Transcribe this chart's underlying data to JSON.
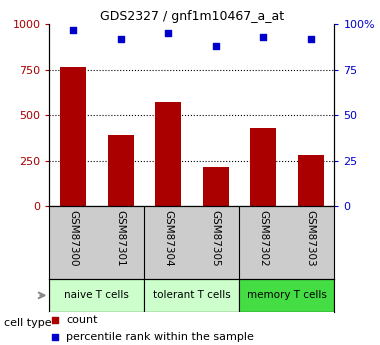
{
  "title": "GDS2327 / gnf1m10467_a_at",
  "samples": [
    "GSM87300",
    "GSM87301",
    "GSM87304",
    "GSM87305",
    "GSM87302",
    "GSM87303"
  ],
  "counts": [
    762,
    390,
    570,
    215,
    430,
    280
  ],
  "percentiles": [
    97,
    92,
    95,
    88,
    93,
    92
  ],
  "cell_types": [
    {
      "label": "naive T cells",
      "color": "#ccffcc"
    },
    {
      "label": "tolerant T cells",
      "color": "#ccffcc"
    },
    {
      "label": "memory T cells",
      "color": "#44dd44"
    }
  ],
  "ct_boundaries": [
    0,
    2,
    4,
    6
  ],
  "bar_color": "#aa0000",
  "dot_color": "#0000cc",
  "ylim_left": [
    0,
    1000
  ],
  "ylim_right": [
    0,
    100
  ],
  "yticks_left": [
    0,
    250,
    500,
    750,
    1000
  ],
  "yticks_right": [
    0,
    25,
    50,
    75,
    100
  ],
  "sample_area_color": "#cccccc",
  "cell_type_label": "cell type",
  "legend_count": "count",
  "legend_percentile": "percentile rank within the sample"
}
